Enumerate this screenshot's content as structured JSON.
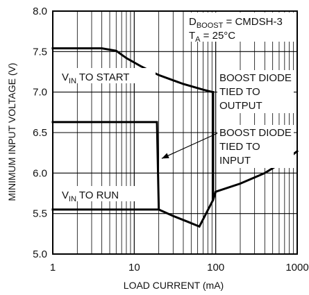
{
  "chart_data": {
    "type": "line",
    "xscale": "log",
    "xlim": [
      1,
      1000
    ],
    "ylim": [
      5.0,
      8.0
    ],
    "xlabel": "LOAD CURRENT (mA)",
    "ylabel": "MINIMUM INPUT VOLTAGE (V)",
    "grid": true,
    "x_ticks": [
      "1",
      "10",
      "100",
      "1000"
    ],
    "y_ticks": [
      "5.0",
      "5.5",
      "6.0",
      "6.5",
      "7.0",
      "7.5",
      "8.0"
    ],
    "series": [
      {
        "label": "start_output",
        "points": [
          [
            1,
            7.54
          ],
          [
            4,
            7.54
          ],
          [
            6,
            7.51
          ],
          [
            8,
            7.42
          ],
          [
            12,
            7.32
          ],
          [
            20,
            7.21
          ],
          [
            40,
            7.1
          ],
          [
            70,
            7.03
          ],
          [
            92,
            7.0
          ]
        ]
      },
      {
        "label": "run_output",
        "points": [
          [
            1,
            5.55
          ],
          [
            10,
            5.55
          ],
          [
            20,
            5.55
          ],
          [
            30,
            5.47
          ],
          [
            45,
            5.4
          ],
          [
            63,
            5.34
          ],
          [
            93,
            5.67
          ],
          [
            93,
            7.0
          ]
        ]
      },
      {
        "label": "start_input",
        "points": [
          [
            1,
            6.63
          ],
          [
            19,
            6.63
          ],
          [
            20,
            5.56
          ]
        ]
      },
      {
        "label": "input_high_current",
        "points": [
          [
            93,
            5.67
          ],
          [
            100,
            5.77
          ],
          [
            200,
            5.87
          ],
          [
            400,
            6.0
          ],
          [
            700,
            6.15
          ],
          [
            1000,
            6.27
          ]
        ]
      }
    ],
    "annotations": {
      "dboost_main": "D",
      "dboost_sub": "BOOST",
      "dboost_rest": " = CMDSH-3",
      "ta_main": "T",
      "ta_sub": "A",
      "ta_rest": " = 25°C",
      "vin_start_main": "V",
      "vin_start_sub": "IN",
      "vin_start_rest": " TO START",
      "vin_run_main": "V",
      "vin_run_sub": "IN",
      "vin_run_rest": " TO RUN",
      "boost_output": [
        "BOOST DIODE",
        "TIED TO",
        "OUTPUT"
      ],
      "boost_input": [
        "BOOST DIODE",
        "TIED TO",
        "INPUT"
      ]
    }
  }
}
